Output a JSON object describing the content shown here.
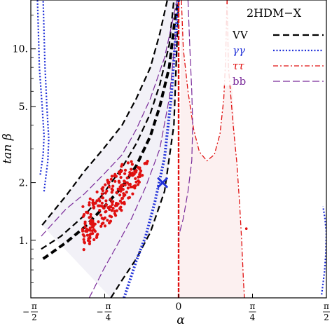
{
  "chart_data": {
    "type": "line",
    "xlabel": "α",
    "ylabel": "tan β",
    "xlim": [
      -1.5708,
      1.5708
    ],
    "ylim": [
      0.5,
      18
    ],
    "yscale": "log",
    "x_ticks": [
      {
        "value": -1.5708,
        "sign": "−",
        "num": "π",
        "den": "2"
      },
      {
        "value": -0.7854,
        "sign": "−",
        "num": "π",
        "den": "4"
      },
      {
        "value": 0,
        "label": "0"
      },
      {
        "value": 0.7854,
        "sign": "",
        "num": "π",
        "den": "4"
      },
      {
        "value": 1.5708,
        "sign": "",
        "num": "π",
        "den": "2"
      }
    ],
    "y_ticks": [
      {
        "value": 1,
        "label": "1."
      },
      {
        "value": 2,
        "label": "2."
      },
      {
        "value": 5,
        "label": "5."
      },
      {
        "value": 10,
        "label": "10."
      }
    ],
    "legend": {
      "title": "2HDM−X",
      "placement": "top-right",
      "entries": [
        {
          "label": "VV",
          "color": "#000000",
          "style": "bold-dashed"
        },
        {
          "label": "γγ",
          "color": "#1f2fd8",
          "style": "dotted"
        },
        {
          "label": "ττ",
          "color": "#e01010",
          "style": "dash-dot"
        },
        {
          "label": "bb",
          "color": "#7a2a9a",
          "style": "long-dash"
        }
      ]
    },
    "series": [
      {
        "name": "VV",
        "color": "#000000",
        "role": "central",
        "points": [
          [
            -1.44,
            0.8
          ],
          [
            -1.2,
            0.97
          ],
          [
            -1.0,
            1.17
          ],
          [
            -0.8,
            1.48
          ],
          [
            -0.6,
            1.9
          ],
          [
            -0.45,
            2.45
          ],
          [
            -0.3,
            3.5
          ],
          [
            -0.2,
            5.0
          ],
          [
            -0.1,
            8.0
          ],
          [
            -0.04,
            14.0
          ],
          [
            0.0,
            18.0
          ]
        ]
      },
      {
        "name": "VV",
        "color": "#000000",
        "role": "inner",
        "points": [
          [
            -1.46,
            0.9
          ],
          [
            -1.25,
            1.05
          ],
          [
            -1.0,
            1.35
          ],
          [
            -0.8,
            1.75
          ],
          [
            -0.6,
            2.4
          ],
          [
            -0.45,
            3.2
          ],
          [
            -0.3,
            4.6
          ],
          [
            -0.2,
            6.5
          ],
          [
            -0.1,
            10.5
          ],
          [
            -0.05,
            18.0
          ]
        ]
      },
      {
        "name": "VV",
        "color": "#000000",
        "role": "outer",
        "points": [
          [
            -1.45,
            1.2
          ],
          [
            -1.2,
            1.7
          ],
          [
            -1.0,
            2.3
          ],
          [
            -0.8,
            3.0
          ],
          [
            -0.6,
            4.0
          ],
          [
            -0.45,
            5.5
          ],
          [
            -0.3,
            8.0
          ],
          [
            -0.2,
            12.0
          ],
          [
            -0.12,
            18.0
          ]
        ]
      },
      {
        "name": "VV",
        "color": "#000000",
        "role": "right-edge",
        "points": [
          [
            -0.72,
            0.5
          ],
          [
            -0.6,
            0.62
          ],
          [
            -0.45,
            0.8
          ],
          [
            -0.3,
            1.1
          ],
          [
            -0.15,
            1.8
          ],
          [
            -0.05,
            4.0
          ],
          [
            0.0,
            18.0
          ]
        ]
      },
      {
        "name": "γγ",
        "color": "#1f2fd8",
        "role": "left-edge",
        "points": [
          [
            -1.47,
            2.2
          ],
          [
            -1.44,
            2.8
          ],
          [
            -1.43,
            3.5
          ],
          [
            -1.45,
            5.0
          ],
          [
            -1.48,
            8.0
          ],
          [
            -1.49,
            12.0
          ],
          [
            -1.5,
            18.0
          ]
        ]
      },
      {
        "name": "γγ",
        "color": "#1f2fd8",
        "role": "left-edge",
        "points": [
          [
            -1.43,
            1.8
          ],
          [
            -1.39,
            2.6
          ],
          [
            -1.38,
            3.4
          ],
          [
            -1.4,
            5.0
          ],
          [
            -1.42,
            8.0
          ],
          [
            -1.43,
            12.0
          ],
          [
            -1.44,
            18.0
          ]
        ]
      },
      {
        "name": "γγ",
        "color": "#1f2fd8",
        "role": "central",
        "points": [
          [
            -0.58,
            0.5
          ],
          [
            -0.45,
            0.78
          ],
          [
            -0.35,
            1.05
          ],
          [
            -0.25,
            1.6
          ],
          [
            -0.15,
            2.7
          ],
          [
            -0.08,
            5.5
          ],
          [
            -0.03,
            12.0
          ],
          [
            0.0,
            18.0
          ]
        ]
      },
      {
        "name": "γγ",
        "color": "#1f2fd8",
        "role": "right-edge",
        "points": [
          [
            1.52,
            0.52
          ],
          [
            1.55,
            0.68
          ],
          [
            1.565,
            0.85
          ],
          [
            1.57,
            1.1
          ],
          [
            1.555,
            1.3
          ],
          [
            1.535,
            1.5
          ]
        ]
      },
      {
        "name": "ττ",
        "color": "#e01010",
        "role": "vertical",
        "points": [
          [
            0.0,
            0.5
          ],
          [
            0.0,
            18.0
          ]
        ]
      },
      {
        "name": "ττ",
        "color": "#e01010",
        "role": "hump",
        "points": [
          [
            0.03,
            18.0
          ],
          [
            0.05,
            10.0
          ],
          [
            0.1,
            6.0
          ],
          [
            0.16,
            3.8
          ],
          [
            0.22,
            2.9
          ],
          [
            0.3,
            2.6
          ],
          [
            0.38,
            2.8
          ],
          [
            0.44,
            3.6
          ],
          [
            0.48,
            5.5
          ],
          [
            0.5,
            9.0
          ],
          [
            0.51,
            15.0
          ],
          [
            0.515,
            18.0
          ]
        ]
      },
      {
        "name": "ττ",
        "color": "#e01010",
        "role": "right-branch",
        "points": [
          [
            0.515,
            18.0
          ],
          [
            0.53,
            8.0
          ],
          [
            0.58,
            4.0
          ],
          [
            0.62,
            2.5
          ],
          [
            0.65,
            1.5
          ],
          [
            0.67,
            1.0
          ],
          [
            0.69,
            0.6
          ],
          [
            0.7,
            0.5
          ]
        ]
      },
      {
        "name": "bb",
        "color": "#7a2a9a",
        "role": "outer",
        "points": [
          [
            -1.46,
            1.05
          ],
          [
            -1.2,
            1.45
          ],
          [
            -1.0,
            1.75
          ],
          [
            -0.8,
            2.2
          ],
          [
            -0.6,
            2.8
          ],
          [
            -0.45,
            3.8
          ],
          [
            -0.3,
            5.5
          ],
          [
            -0.15,
            9.0
          ],
          [
            -0.05,
            15.0
          ],
          [
            -0.02,
            18.0
          ]
        ]
      },
      {
        "name": "bb",
        "color": "#7a2a9a",
        "role": "lower",
        "points": [
          [
            -0.95,
            0.5
          ],
          [
            -0.8,
            0.7
          ],
          [
            -0.65,
            0.95
          ],
          [
            -0.5,
            1.3
          ],
          [
            -0.35,
            1.9
          ],
          [
            -0.2,
            3.0
          ],
          [
            -0.1,
            5.5
          ],
          [
            -0.03,
            12.0
          ]
        ]
      },
      {
        "name": "bb",
        "color": "#7a2a9a",
        "role": "right-arc",
        "points": [
          [
            0.1,
            18.0
          ],
          [
            0.12,
            10.0
          ],
          [
            0.14,
            6.0
          ],
          [
            0.15,
            4.0
          ],
          [
            0.14,
            2.6
          ],
          [
            0.1,
            1.8
          ],
          [
            0.05,
            1.3
          ],
          [
            0.0,
            1.05
          ]
        ]
      }
    ],
    "best_fit": {
      "x": -0.17,
      "y": 2.0,
      "marker": "×",
      "color": "#1f2fd8"
    },
    "scatter": {
      "color": "#e01010",
      "count": 320,
      "note": "red scan points along the VV band"
    }
  }
}
